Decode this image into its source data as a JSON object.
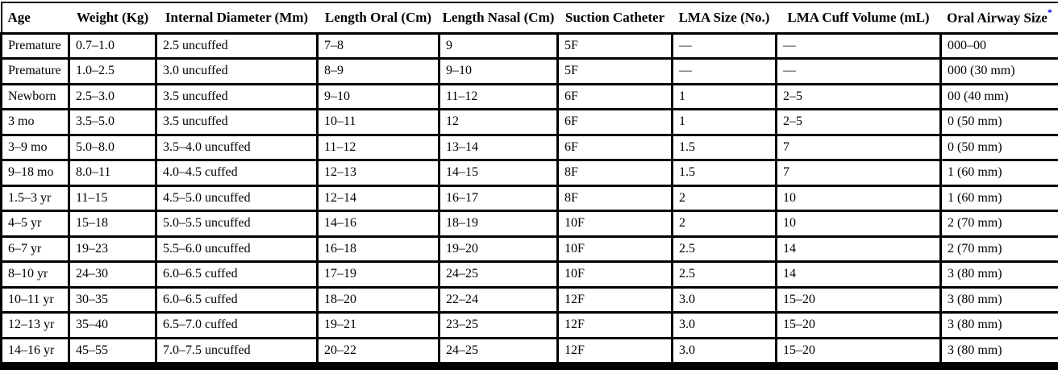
{
  "page": {
    "background_color": "#ffffff",
    "border_color": "#000000",
    "text_color": "#000000"
  },
  "table": {
    "name": "pediatric-airway-equipment-size-table",
    "columns": [
      "Age",
      "Weight (Kg)",
      "Internal Diameter (Mm)",
      "Length Oral (Cm)",
      "Length Nasal (Cm)",
      "Suction Catheter",
      "LMA Size (No.)",
      "LMA Cuff Volume (mL)",
      "Oral Airway Size"
    ],
    "last_column_note_symbol": "*",
    "note_symbol_color": "#0000ee",
    "rows": [
      [
        "Premature",
        "0.7–1.0",
        "2.5 uncuffed",
        "7–8",
        "9",
        "5F",
        "—",
        "—",
        "000–00"
      ],
      [
        "Premature",
        "1.0–2.5",
        "3.0 uncuffed",
        "8–9",
        "9–10",
        "5F",
        "—",
        "—",
        "000 (30 mm)"
      ],
      [
        "Newborn",
        "2.5–3.0",
        "3.5 uncuffed",
        "9–10",
        "11–12",
        "6F",
        "1",
        "2–5",
        "00 (40 mm)"
      ],
      [
        "3 mo",
        "3.5–5.0",
        "3.5 uncuffed",
        "10–11",
        "12",
        "6F",
        "1",
        "2–5",
        "0 (50 mm)"
      ],
      [
        "3–9 mo",
        "5.0–8.0",
        "3.5–4.0 uncuffed",
        "11–12",
        "13–14",
        "6F",
        "1.5",
        "7",
        "0 (50 mm)"
      ],
      [
        "9–18 mo",
        "8.0–11",
        "4.0–4.5 cuffed",
        "12–13",
        "14–15",
        "8F",
        "1.5",
        "7",
        "1 (60 mm)"
      ],
      [
        "1.5–3 yr",
        "11–15",
        "4.5–5.0 uncuffed",
        "12–14",
        "16–17",
        "8F",
        "2",
        "10",
        "1 (60 mm)"
      ],
      [
        "4–5 yr",
        "15–18",
        "5.0–5.5 uncuffed",
        "14–16",
        "18–19",
        "10F",
        "2",
        "10",
        "2 (70 mm)"
      ],
      [
        "6–7 yr",
        "19–23",
        "5.5–6.0 uncuffed",
        "16–18",
        "19–20",
        "10F",
        "2.5",
        "14",
        "2 (70 mm)"
      ],
      [
        "8–10 yr",
        "24–30",
        "6.0–6.5 cuffed",
        "17–19",
        "24–25",
        "10F",
        "2.5",
        "14",
        "3 (80 mm)"
      ],
      [
        "10–11 yr",
        "30–35",
        "6.0–6.5 cuffed",
        "18–20",
        "22–24",
        "12F",
        "3.0",
        "15–20",
        "3 (80 mm)"
      ],
      [
        "12–13 yr",
        "35–40",
        "6.5–7.0 cuffed",
        "19–21",
        "23–25",
        "12F",
        "3.0",
        "15–20",
        "3 (80 mm)"
      ],
      [
        "14–16 yr",
        "45–55",
        "7.0–7.5 uncuffed",
        "20–22",
        "24–25",
        "12F",
        "3.0",
        "15–20",
        "3 (80 mm)"
      ]
    ]
  }
}
